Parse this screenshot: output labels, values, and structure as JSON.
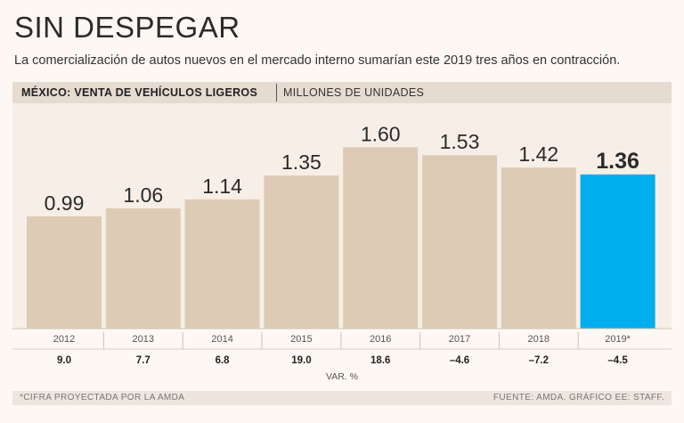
{
  "header": {
    "title": "SIN DESPEGAR",
    "subtitle": "La comercialización de autos nuevos en el mercado interno sumarían este 2019 tres años en contracción."
  },
  "band": {
    "label": "MÉXICO: VENTA DE VEHÍCULOS LIGEROS",
    "unit": "MILLONES DE UNIDADES"
  },
  "chart_data": {
    "type": "bar",
    "title": "MÉXICO: VENTA DE VEHÍCULOS LIGEROS",
    "ylabel": "MILLONES DE UNIDADES",
    "xlabel": "",
    "categories": [
      "2012",
      "2013",
      "2014",
      "2015",
      "2016",
      "2017",
      "2018",
      "2019*"
    ],
    "values": [
      0.99,
      1.06,
      1.14,
      1.35,
      1.6,
      1.53,
      1.42,
      1.36
    ],
    "value_labels": [
      "0.99",
      "1.06",
      "1.14",
      "1.35",
      "1.60",
      "1.53",
      "1.42",
      "1.36"
    ],
    "variation_label": "VAR. %",
    "variation": [
      "9.0",
      "7.7",
      "6.8",
      "19.0",
      "18.6",
      "–4.6",
      "–7.2",
      "–4.5"
    ],
    "ylim": [
      0,
      1.8
    ],
    "grid": false,
    "highlight_index": 7,
    "colors": {
      "bar": "#ddcbb6",
      "highlight": "#00aeef",
      "band": "#e6dbd0"
    }
  },
  "footer": {
    "note": "*CIFRA PROYECTADA POR LA AMDA",
    "source": "FUENTE: AMDA. GRÁFICO EE: STAFF."
  }
}
